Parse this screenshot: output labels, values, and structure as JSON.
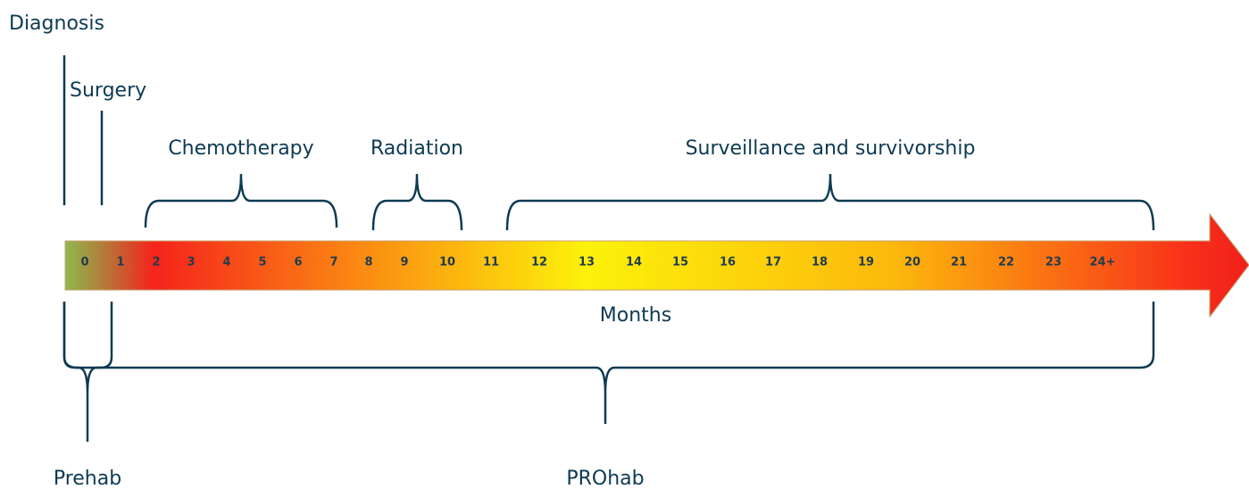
{
  "labels": {
    "diagnosis": "Diagnosis",
    "surgery": "Surgery",
    "chemotherapy": "Chemotherapy",
    "radiation": "Radiation",
    "surveillance": "Surveillance and survivorship",
    "months": "Months",
    "prehab": "Prehab",
    "prohab": "PROhab"
  },
  "months": {
    "ticks": [
      "0",
      "1",
      "2",
      "3",
      "4",
      "5",
      "6",
      "7",
      "8",
      "9",
      "10",
      "11",
      "12",
      "13",
      "14",
      "15",
      "16",
      "17",
      "18",
      "19",
      "20",
      "21",
      "22",
      "23",
      "24+"
    ]
  }
}
